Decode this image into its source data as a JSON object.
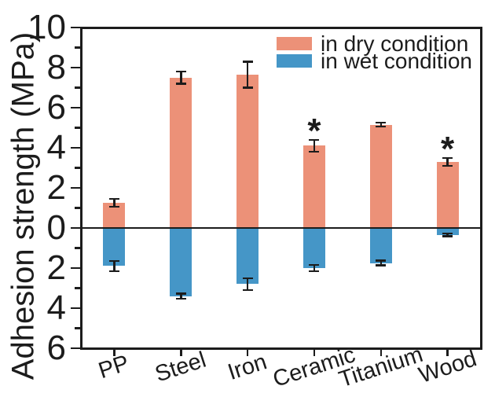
{
  "figure": {
    "background": "#ffffff",
    "line_color": "#1c1c1c"
  },
  "chart_data": {
    "type": "bar",
    "subtype": "diverging-vertical-with-error-bars",
    "title": "",
    "xlabel": "",
    "ylabel": "Adhesion strength (MPa)",
    "categories": [
      "PP",
      "Steel",
      "Iron",
      "Ceramic",
      "Titanium",
      "Wood"
    ],
    "series": [
      {
        "name": "in dry condition",
        "color": "#EC9178",
        "direction": "up",
        "values": [
          1.25,
          7.5,
          7.65,
          4.1,
          5.15,
          3.3
        ],
        "errors": [
          0.2,
          0.3,
          0.65,
          0.3,
          0.1,
          0.2
        ],
        "significance": [
          "",
          "",
          "",
          "*",
          "",
          "*"
        ]
      },
      {
        "name": "in wet condition",
        "color": "#4596C7",
        "direction": "down",
        "values": [
          -1.9,
          -3.4,
          -2.8,
          -2.0,
          -1.75,
          -0.35
        ],
        "errors": [
          0.25,
          0.12,
          0.3,
          0.15,
          0.12,
          0.07
        ],
        "significance": [
          "",
          "",
          "",
          "",
          "",
          ""
        ]
      }
    ],
    "ylim": [
      -6,
      10
    ],
    "y_major_ticks": [
      10,
      8,
      6,
      4,
      2,
      0,
      -2,
      -4,
      -6
    ],
    "y_tick_labels": [
      "10",
      "8",
      "6",
      "4",
      "2",
      "0",
      "2",
      "4",
      "6"
    ],
    "y_minor_ticks": [
      9,
      7,
      5,
      3,
      1,
      -1,
      -3,
      -5
    ],
    "grid": false,
    "zero_baseline": true,
    "legend_position": "top-right-inside",
    "error_bar_color": "#1c1c1c"
  }
}
